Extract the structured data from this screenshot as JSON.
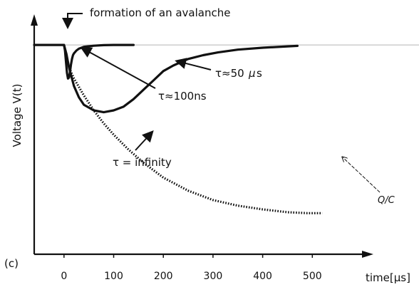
{
  "chart_data": {
    "type": "line",
    "panel_label": "(c)",
    "xlabel": "time[µs]",
    "ylabel": "Voltage V(t)",
    "xlim": [
      -60,
      600
    ],
    "ylim": [
      -1.12,
      0.13
    ],
    "x_ticks": [
      0,
      100,
      200,
      300,
      400,
      500
    ],
    "x_tick_labels": [
      "0",
      "100",
      "200",
      "300",
      "400",
      "500"
    ],
    "baseline": 0,
    "series": [
      {
        "name": "τ≈100ns",
        "style": "solid-bold",
        "x": [
          -60,
          0,
          2,
          4,
          6,
          8,
          10,
          12,
          14,
          16,
          18,
          20,
          25,
          30,
          40,
          60,
          80,
          100,
          120,
          140
        ],
        "y": [
          0,
          0,
          -0.03,
          -0.09,
          -0.15,
          -0.18,
          -0.175,
          -0.145,
          -0.105,
          -0.075,
          -0.055,
          -0.045,
          -0.03,
          -0.02,
          -0.01,
          -0.004,
          -0.001,
          0,
          0,
          0
        ]
      },
      {
        "name": "τ≈50µs",
        "style": "solid-bold",
        "x": [
          0,
          5,
          10,
          20,
          30,
          40,
          60,
          80,
          100,
          120,
          140,
          160,
          180,
          200,
          220,
          250,
          280,
          310,
          350,
          400,
          470
        ],
        "y": [
          0,
          -0.05,
          -0.12,
          -0.22,
          -0.28,
          -0.32,
          -0.35,
          -0.36,
          -0.35,
          -0.33,
          -0.29,
          -0.24,
          -0.19,
          -0.14,
          -0.11,
          -0.075,
          -0.055,
          -0.04,
          -0.025,
          -0.015,
          -0.005
        ]
      },
      {
        "name": "τ = infinity",
        "style": "dotted",
        "x": [
          0,
          10,
          20,
          40,
          60,
          80,
          100,
          130,
          160,
          200,
          250,
          300,
          350,
          400,
          450,
          490,
          520
        ],
        "y": [
          0,
          -0.12,
          -0.18,
          -0.27,
          -0.35,
          -0.42,
          -0.48,
          -0.56,
          -0.63,
          -0.71,
          -0.78,
          -0.83,
          -0.86,
          -0.88,
          -0.895,
          -0.9,
          -0.9
        ]
      }
    ],
    "annotations": [
      {
        "text": "formation of an avalanche",
        "x": 0,
        "y": 0
      },
      {
        "text": "τ≈50",
        "x": 210,
        "y": -0.2
      },
      {
        "text": "µ",
        "x": 270,
        "y": -0.2
      },
      {
        "text": "s",
        "x": 285,
        "y": -0.2
      },
      {
        "text": "τ≈100ns",
        "x": 25,
        "y": -0.07
      },
      {
        "text": "τ = infinity",
        "x": 150,
        "y": -0.6
      },
      {
        "text": "Q/C",
        "x": 540,
        "y": -0.9
      }
    ]
  },
  "colors": {
    "line": "#111111",
    "baseline": "#b5b5b5"
  }
}
